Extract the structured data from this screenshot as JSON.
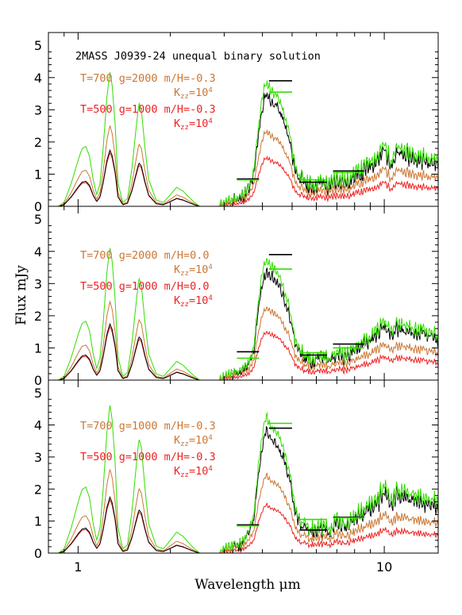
{
  "chart_data": {
    "type": "line",
    "title": "2MASS J0939-24 unequal binary solution",
    "xlabel": "Wavelength μm",
    "ylabel": "Flux mJy",
    "x_scale": "log",
    "xlim": [
      0.8,
      15
    ],
    "ylim": [
      0,
      5.4
    ],
    "x_tick_labels": [
      "1",
      "10"
    ],
    "y_tick_labels": [
      "0",
      "1",
      "2",
      "3",
      "4",
      "5"
    ],
    "colors": {
      "observed": "#000000",
      "sum": "#33dd00",
      "warm": "#cc7733",
      "cold": "#ee2222"
    },
    "panels": [
      {
        "annotations": [
          {
            "text": "T=700 g=2000 m/H=-0.3",
            "color": "#cc7733"
          },
          {
            "text": "K",
            "sub": "zz",
            "mid": "=10",
            "sup": "4",
            "color": "#cc7733"
          },
          {
            "text": "T=500 g=1000 m/H=-0.3",
            "color": "#ee2222"
          },
          {
            "text": "K",
            "sub": "zz",
            "mid": "=10",
            "sup": "4",
            "color": "#ee2222"
          }
        ],
        "sum_scale": 1.0,
        "warm_scale": 0.72,
        "photometry": [
          {
            "x1": 3.3,
            "x2": 3.9,
            "y": 0.85,
            "color": "#000000"
          },
          {
            "x1": 3.3,
            "x2": 3.9,
            "y": 0.82,
            "color": "#33dd00"
          },
          {
            "x1": 4.2,
            "x2": 5.0,
            "y": 3.9,
            "color": "#000000"
          },
          {
            "x1": 4.2,
            "x2": 5.0,
            "y": 3.55,
            "color": "#33dd00"
          },
          {
            "x1": 5.3,
            "x2": 6.5,
            "y": 0.75,
            "color": "#000000"
          },
          {
            "x1": 5.3,
            "x2": 6.5,
            "y": 0.82,
            "color": "#33dd00"
          },
          {
            "x1": 6.8,
            "x2": 8.6,
            "y": 1.1,
            "color": "#000000"
          },
          {
            "x1": 6.8,
            "x2": 8.6,
            "y": 1.05,
            "color": "#33dd00"
          }
        ]
      },
      {
        "annotations": [
          {
            "text": "T=700 g=2000 m/H=0.0",
            "color": "#cc7733"
          },
          {
            "text": "K",
            "sub": "zz",
            "mid": "=10",
            "sup": "4",
            "color": "#cc7733"
          },
          {
            "text": "T=500 g=1000 m/H=0.0",
            "color": "#ee2222"
          },
          {
            "text": "K",
            "sub": "zz",
            "mid": "=10",
            "sup": "4",
            "color": "#ee2222"
          }
        ],
        "sum_scale": 1.0,
        "warm_scale": 0.7,
        "photometry": [
          {
            "x1": 3.3,
            "x2": 3.9,
            "y": 0.88,
            "color": "#000000"
          },
          {
            "x1": 3.3,
            "x2": 3.9,
            "y": 0.68,
            "color": "#33dd00"
          },
          {
            "x1": 4.2,
            "x2": 5.0,
            "y": 3.9,
            "color": "#000000"
          },
          {
            "x1": 4.2,
            "x2": 5.0,
            "y": 3.45,
            "color": "#33dd00"
          },
          {
            "x1": 5.3,
            "x2": 6.5,
            "y": 0.78,
            "color": "#000000"
          },
          {
            "x1": 5.3,
            "x2": 6.5,
            "y": 0.85,
            "color": "#33dd00"
          },
          {
            "x1": 6.8,
            "x2": 8.6,
            "y": 1.12,
            "color": "#000000"
          },
          {
            "x1": 6.8,
            "x2": 8.6,
            "y": 1.0,
            "color": "#33dd00"
          }
        ]
      },
      {
        "annotations": [
          {
            "text": "T=700 g=1000 m/H=-0.3",
            "color": "#cc7733"
          },
          {
            "text": "K",
            "sub": "zz",
            "mid": "=10",
            "sup": "4",
            "color": "#cc7733"
          },
          {
            "text": "T=500 g=1000 m/H=-0.3",
            "color": "#ee2222"
          },
          {
            "text": "K",
            "sub": "zz",
            "mid": "=10",
            "sup": "4",
            "color": "#ee2222"
          }
        ],
        "sum_scale": 1.08,
        "warm_scale": 0.75,
        "photometry": [
          {
            "x1": 3.3,
            "x2": 3.9,
            "y": 0.88,
            "color": "#000000"
          },
          {
            "x1": 3.3,
            "x2": 3.9,
            "y": 0.85,
            "color": "#33dd00"
          },
          {
            "x1": 4.2,
            "x2": 5.0,
            "y": 3.9,
            "color": "#000000"
          },
          {
            "x1": 4.2,
            "x2": 5.0,
            "y": 4.05,
            "color": "#33dd00"
          },
          {
            "x1": 5.3,
            "x2": 6.5,
            "y": 0.72,
            "color": "#000000"
          },
          {
            "x1": 5.3,
            "x2": 6.5,
            "y": 1.05,
            "color": "#33dd00"
          },
          {
            "x1": 6.8,
            "x2": 8.6,
            "y": 1.12,
            "color": "#000000"
          },
          {
            "x1": 6.8,
            "x2": 8.6,
            "y": 1.1,
            "color": "#33dd00"
          }
        ]
      }
    ],
    "observed_spectrum": [
      [
        0.86,
        0.0
      ],
      [
        0.9,
        0.05
      ],
      [
        0.95,
        0.3
      ],
      [
        1.0,
        0.6
      ],
      [
        1.03,
        0.75
      ],
      [
        1.06,
        0.78
      ],
      [
        1.09,
        0.65
      ],
      [
        1.12,
        0.35
      ],
      [
        1.15,
        0.15
      ],
      [
        1.18,
        0.3
      ],
      [
        1.21,
        0.8
      ],
      [
        1.24,
        1.4
      ],
      [
        1.27,
        1.75
      ],
      [
        1.29,
        1.6
      ],
      [
        1.32,
        1.1
      ],
      [
        1.35,
        0.3
      ],
      [
        1.4,
        0.05
      ],
      [
        1.45,
        0.1
      ],
      [
        1.5,
        0.5
      ],
      [
        1.55,
        1.05
      ],
      [
        1.58,
        1.35
      ],
      [
        1.61,
        1.25
      ],
      [
        1.65,
        0.8
      ],
      [
        1.7,
        0.35
      ],
      [
        1.8,
        0.08
      ],
      [
        1.9,
        0.05
      ],
      [
        2.0,
        0.15
      ],
      [
        2.05,
        0.2
      ],
      [
        2.1,
        0.25
      ],
      [
        2.15,
        0.22
      ],
      [
        2.2,
        0.2
      ],
      [
        2.3,
        0.12
      ],
      [
        2.4,
        0.05
      ],
      [
        2.5,
        0.0
      ],
      [
        2.9,
        0.0
      ]
    ],
    "cold_spectrum": [
      [
        0.86,
        0.0
      ],
      [
        0.95,
        0.05
      ],
      [
        1.0,
        0.12
      ],
      [
        1.05,
        0.18
      ],
      [
        1.1,
        0.1
      ],
      [
        1.15,
        0.04
      ],
      [
        1.2,
        0.1
      ],
      [
        1.25,
        0.28
      ],
      [
        1.28,
        0.35
      ],
      [
        1.32,
        0.2
      ],
      [
        1.38,
        0.03
      ],
      [
        1.5,
        0.05
      ],
      [
        1.57,
        0.2
      ],
      [
        1.62,
        0.18
      ],
      [
        1.7,
        0.05
      ],
      [
        1.9,
        0.02
      ],
      [
        2.1,
        0.05
      ],
      [
        2.3,
        0.02
      ],
      [
        2.9,
        0.0
      ],
      [
        3.1,
        0.05
      ],
      [
        3.4,
        0.1
      ],
      [
        3.6,
        0.2
      ],
      [
        3.75,
        0.4
      ],
      [
        3.85,
        0.85
      ],
      [
        3.95,
        1.2
      ],
      [
        4.05,
        1.45
      ],
      [
        4.15,
        1.5
      ],
      [
        4.3,
        1.4
      ],
      [
        4.45,
        1.35
      ],
      [
        4.6,
        1.25
      ],
      [
        4.75,
        1.05
      ],
      [
        4.9,
        0.9
      ],
      [
        5.05,
        0.6
      ],
      [
        5.2,
        0.4
      ],
      [
        5.5,
        0.3
      ],
      [
        5.8,
        0.25
      ],
      [
        6.2,
        0.3
      ],
      [
        6.6,
        0.25
      ],
      [
        7.0,
        0.35
      ],
      [
        7.5,
        0.3
      ],
      [
        8.0,
        0.4
      ],
      [
        8.5,
        0.45
      ],
      [
        9.0,
        0.55
      ],
      [
        9.5,
        0.6
      ],
      [
        10.0,
        0.75
      ],
      [
        10.5,
        0.55
      ],
      [
        11.0,
        0.7
      ],
      [
        12.0,
        0.65
      ],
      [
        13.0,
        0.6
      ],
      [
        14.0,
        0.6
      ],
      [
        15.0,
        0.55
      ]
    ]
  }
}
